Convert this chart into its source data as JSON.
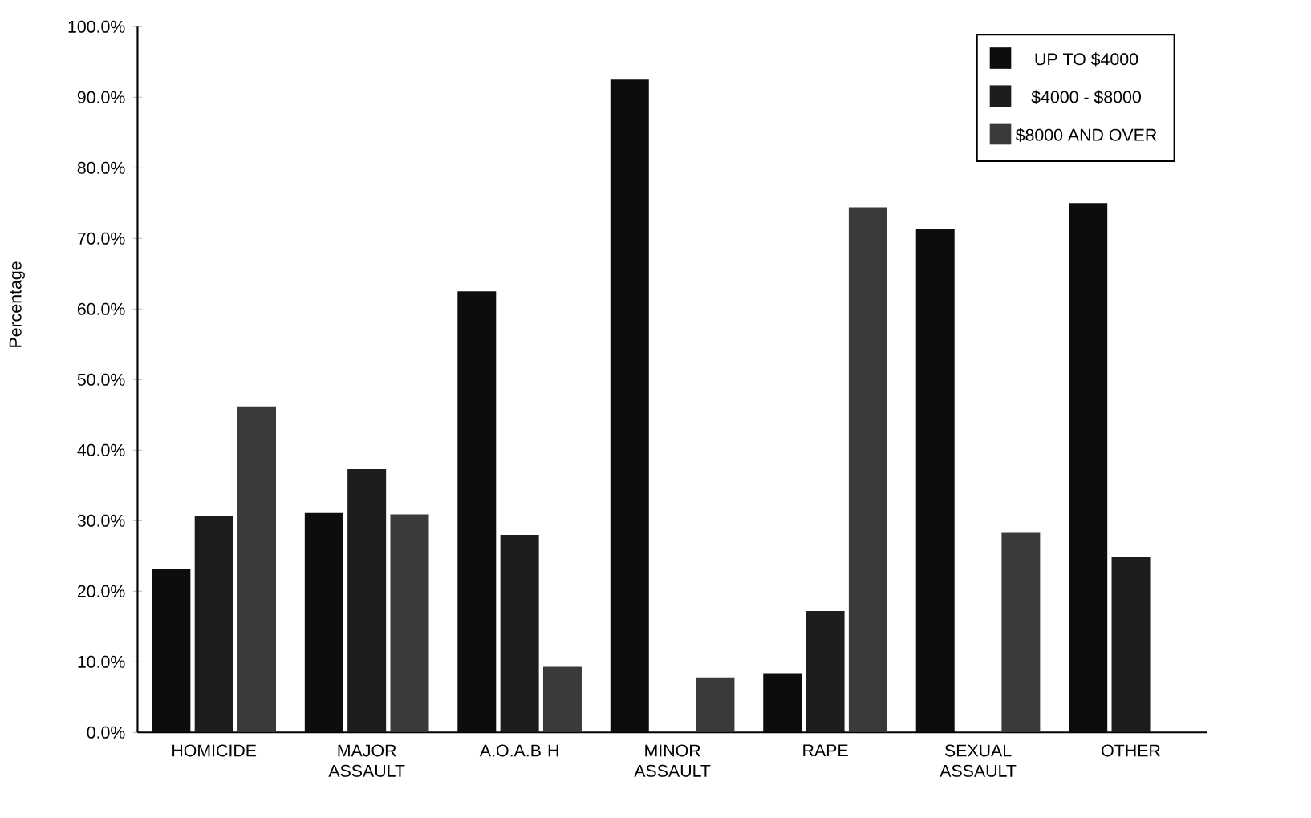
{
  "chart_data": {
    "type": "bar",
    "ylabel": "Percentage",
    "categories": [
      "HOMICIDE",
      "MAJOR ASSAULT",
      "A.O.A.B H",
      "MINOR ASSAULT",
      "RAPE",
      "SEXUAL ASSAULT",
      "OTHER"
    ],
    "series": [
      {
        "name": "UP TO $4000",
        "color": "#0d0d0d",
        "values": [
          23.1,
          31.1,
          62.5,
          92.5,
          8.4,
          71.3,
          75.0
        ]
      },
      {
        "name": "$4000 - $8000",
        "color": "#1c1c1c",
        "values": [
          30.7,
          37.3,
          28.0,
          0,
          17.2,
          0,
          24.9
        ]
      },
      {
        "name": "$8000 AND OVER",
        "color": "#3a3a3a",
        "values": [
          46.2,
          30.9,
          9.3,
          7.8,
          74.4,
          28.4,
          0
        ]
      }
    ],
    "ylim": [
      0,
      100
    ],
    "yticks": [
      {
        "value": 0,
        "label": "0.0%"
      },
      {
        "value": 10,
        "label": "10.0%"
      },
      {
        "value": 20,
        "label": "20.0%"
      },
      {
        "value": 30,
        "label": "30.0%"
      },
      {
        "value": 40,
        "label": "40.0%"
      },
      {
        "value": 50,
        "label": "50.0%"
      },
      {
        "value": 60,
        "label": "60.0%"
      },
      {
        "value": 70,
        "label": "70.0%"
      },
      {
        "value": 80,
        "label": "80.0%"
      },
      {
        "value": 90,
        "label": "90.0%"
      },
      {
        "value": 100,
        "label": "100.0%"
      }
    ],
    "grid": false,
    "legend": "top right"
  }
}
